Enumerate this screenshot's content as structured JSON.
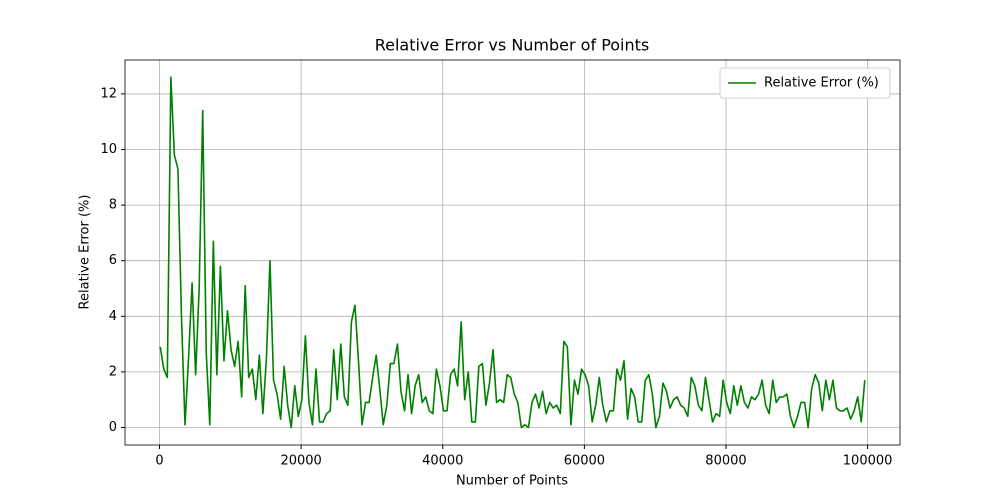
{
  "chart_data": {
    "type": "line",
    "title": "Relative Error vs Number of Points",
    "xlabel": "Number of Points",
    "ylabel": "Relative Error (%)",
    "x": [
      100,
      600,
      1100,
      1600,
      2100,
      2600,
      3100,
      3600,
      4100,
      4600,
      5100,
      5600,
      6100,
      6600,
      7100,
      7600,
      8100,
      8600,
      9100,
      9600,
      10100,
      10600,
      11100,
      11600,
      12100,
      12600,
      13100,
      13600,
      14100,
      14600,
      15100,
      15600,
      16100,
      16600,
      17100,
      17600,
      18100,
      18600,
      19100,
      19600,
      20100,
      20600,
      21100,
      21600,
      22100,
      22600,
      23100,
      23600,
      24100,
      24600,
      25100,
      25600,
      26100,
      26600,
      27100,
      27600,
      28100,
      28600,
      29100,
      29600,
      30100,
      30600,
      31100,
      31600,
      32100,
      32600,
      33100,
      33600,
      34100,
      34600,
      35100,
      35600,
      36100,
      36600,
      37100,
      37600,
      38100,
      38600,
      39100,
      39600,
      40100,
      40600,
      41100,
      41600,
      42100,
      42600,
      43100,
      43600,
      44100,
      44600,
      45100,
      45600,
      46100,
      46600,
      47100,
      47600,
      48100,
      48600,
      49100,
      49600,
      50100,
      50600,
      51100,
      51600,
      52100,
      52600,
      53100,
      53600,
      54100,
      54600,
      55100,
      55600,
      56100,
      56600,
      57100,
      57600,
      58100,
      58600,
      59100,
      59600,
      60100,
      60600,
      61100,
      61600,
      62100,
      62600,
      63100,
      63600,
      64100,
      64600,
      65100,
      65600,
      66100,
      66600,
      67100,
      67600,
      68100,
      68600,
      69100,
      69600,
      70100,
      70600,
      71100,
      71600,
      72100,
      72600,
      73100,
      73600,
      74100,
      74600,
      75100,
      75600,
      76100,
      76600,
      77100,
      77600,
      78100,
      78600,
      79100,
      79600,
      80100,
      80600,
      81100,
      81600,
      82100,
      82600,
      83100,
      83600,
      84100,
      84600,
      85100,
      85600,
      86100,
      86600,
      87100,
      87600,
      88100,
      88600,
      89100,
      89600,
      90100,
      90600,
      91100,
      91600,
      92100,
      92600,
      93100,
      93600,
      94100,
      94600,
      95100,
      95600,
      96100,
      96600,
      97100,
      97600,
      98100,
      98600,
      99100,
      99600
    ],
    "series": [
      {
        "name": "Relative Error (%)",
        "color": "#008000",
        "values": [
          2.9,
          2.1,
          1.8,
          12.6,
          9.8,
          9.3,
          4.0,
          0.1,
          2.5,
          5.2,
          1.9,
          5.0,
          11.4,
          2.7,
          0.1,
          6.7,
          1.9,
          5.8,
          2.4,
          4.2,
          2.8,
          2.2,
          3.1,
          1.1,
          5.1,
          1.8,
          2.1,
          1.0,
          2.6,
          0.5,
          2.5,
          6.0,
          1.7,
          1.2,
          0.3,
          2.2,
          0.8,
          0.0,
          1.5,
          0.4,
          1.0,
          3.3,
          0.9,
          0.1,
          2.1,
          0.2,
          0.2,
          0.5,
          0.6,
          2.8,
          1.0,
          3.0,
          1.1,
          0.8,
          3.8,
          4.4,
          2.4,
          0.1,
          0.9,
          0.9,
          1.8,
          2.6,
          1.4,
          0.1,
          0.8,
          2.3,
          2.3,
          3.0,
          1.3,
          0.6,
          1.9,
          0.5,
          1.5,
          1.9,
          0.9,
          1.1,
          0.6,
          0.5,
          2.1,
          1.5,
          0.6,
          0.6,
          1.9,
          2.1,
          1.5,
          3.8,
          1.0,
          2.0,
          0.2,
          0.2,
          2.2,
          2.3,
          0.8,
          1.6,
          2.8,
          0.9,
          1.0,
          0.9,
          1.9,
          1.8,
          1.2,
          0.9,
          0.0,
          0.1,
          0.0,
          0.9,
          1.2,
          0.7,
          1.3,
          0.5,
          0.9,
          0.7,
          0.8,
          0.5,
          3.1,
          2.9,
          0.1,
          1.7,
          1.2,
          2.1,
          1.9,
          1.5,
          0.2,
          0.8,
          1.8,
          0.8,
          0.2,
          0.6,
          0.6,
          2.1,
          1.7,
          2.4,
          0.3,
          1.4,
          1.1,
          0.2,
          0.2,
          1.7,
          1.9,
          1.2,
          0.0,
          0.4,
          1.6,
          1.3,
          0.7,
          1.0,
          1.1,
          0.8,
          0.7,
          0.4,
          1.8,
          1.5,
          0.8,
          0.6,
          1.8,
          1.0,
          0.2,
          0.5,
          0.4,
          1.7,
          0.9,
          0.5,
          1.5,
          0.8,
          1.5,
          0.9,
          0.7,
          1.1,
          1.0,
          1.2,
          1.7,
          0.8,
          0.5,
          1.7,
          0.9,
          1.1,
          1.1,
          1.2,
          0.4,
          0.0,
          0.4,
          0.9,
          0.9,
          0.0,
          1.4,
          1.9,
          1.6,
          0.6,
          1.7,
          1.0,
          1.7,
          0.7,
          0.6,
          0.6,
          0.7,
          0.3,
          0.6,
          1.1,
          0.2,
          1.7
        ]
      }
    ],
    "xlim": [
      -4875,
      104575
    ],
    "ylim": [
      -0.63,
      13.22
    ],
    "xticks": [
      0,
      20000,
      40000,
      60000,
      80000,
      100000
    ],
    "yticks": [
      0,
      2,
      4,
      6,
      8,
      10,
      12
    ],
    "grid": true,
    "legend": "upper right"
  }
}
